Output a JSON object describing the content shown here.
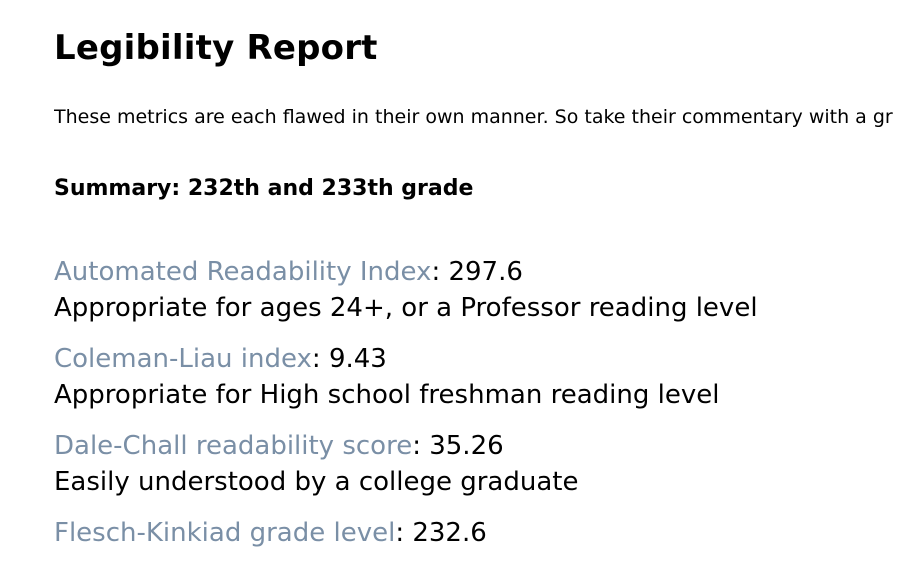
{
  "report": {
    "title": "Legibility Report",
    "intro": "These metrics are each flawed in their own manner. So take their commentary with a gr",
    "summary": "Summary: 232th and 233th grade"
  },
  "metrics": [
    {
      "name": "Automated Readability Index",
      "value": ": 297.6",
      "description": "Appropriate for ages 24+, or a Professor reading level"
    },
    {
      "name": "Coleman-Liau index",
      "value": ": 9.43",
      "description": "Appropriate for High school freshman reading level"
    },
    {
      "name": "Dale-Chall readability score",
      "value": ": 35.26",
      "description": "Easily understood by a college graduate"
    },
    {
      "name": "Flesch-Kinkiad grade level",
      "value": ": 232.6",
      "description": ""
    }
  ],
  "colors": {
    "link": "#7a8fa6",
    "text": "#000000",
    "background": "#ffffff"
  }
}
